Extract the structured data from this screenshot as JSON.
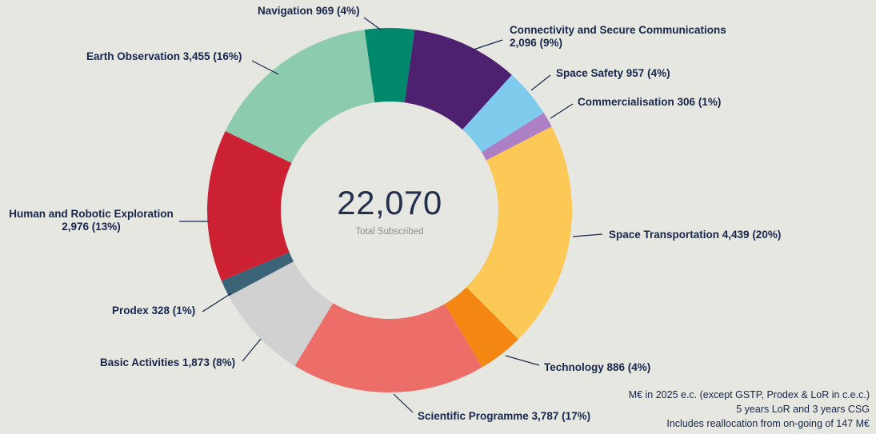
{
  "chart_data": {
    "type": "pie",
    "variant": "donut",
    "center_value": "22,070",
    "center_label": "Total Subscribed",
    "total": 22070,
    "legend_position": "around-labels",
    "segments": [
      {
        "id": "navigation",
        "label": "Navigation",
        "value": 969,
        "pct": "4%",
        "display": "Navigation 969 (4%)",
        "color": "#00886d"
      },
      {
        "id": "connectivity",
        "label": "Connectivity and Secure Communications",
        "value": 2096,
        "pct": "9%",
        "display": "Connectivity and Secure Communications 2,096 (9%)",
        "color": "#4d2170"
      },
      {
        "id": "space-safety",
        "label": "Space Safety",
        "value": 957,
        "pct": "4%",
        "display": "Space Safety 957 (4%)",
        "color": "#7fcbee"
      },
      {
        "id": "commercialisation",
        "label": "Commercialisation",
        "value": 306,
        "pct": "1%",
        "display": "Commercialisation 306 (1%)",
        "color": "#ad7fc4"
      },
      {
        "id": "space-transportation",
        "label": "Space Transportation",
        "value": 4439,
        "pct": "20%",
        "display": "Space Transportation 4,439 (20%)",
        "color": "#fcc856"
      },
      {
        "id": "technology",
        "label": "Technology",
        "value": 886,
        "pct": "4%",
        "display": "Technology 886 (4%)",
        "color": "#f48612"
      },
      {
        "id": "scientific-programme",
        "label": "Scientific Programme",
        "value": 3787,
        "pct": "17%",
        "display": "Scientific Programme 3,787 (17%)",
        "color": "#ed6d68"
      },
      {
        "id": "basic-activities",
        "label": "Basic Activities",
        "value": 1873,
        "pct": "8%",
        "display": "Basic Activities 1,873 (8%)",
        "color": "#d1d1d1"
      },
      {
        "id": "prodex",
        "label": "Prodex",
        "value": 328,
        "pct": "1%",
        "display": "Prodex 328 (1%)",
        "color": "#3b6377"
      },
      {
        "id": "human-robotic-exploration",
        "label": "Human and Robotic Exploration",
        "value": 2976,
        "pct": "13%",
        "display": "Human and Robotic Exploration 2,976 (13%)",
        "color": "#cc2033"
      },
      {
        "id": "earth-observation",
        "label": "Earth Observation",
        "value": 3455,
        "pct": "16%",
        "display": "Earth Observation 3,455 (16%)",
        "color": "#8dcbae"
      }
    ]
  },
  "footnotes": [
    "M€ in 2025 e.c. (except GSTP, Prodex & LoR in c.e.c.)",
    "5 years LoR and 3 years CSG",
    "Includes reallocation from on-going of 147 M€"
  ]
}
